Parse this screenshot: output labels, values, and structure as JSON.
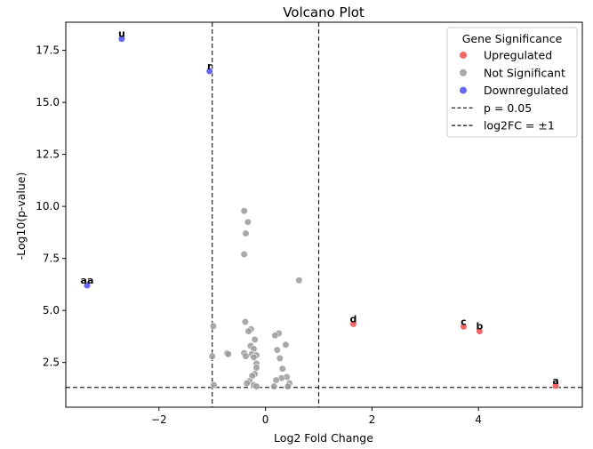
{
  "chart_data": {
    "type": "scatter",
    "title": "Volcano Plot",
    "xlabel": "Log2 Fold Change",
    "ylabel": "-Log10(p-value)",
    "xlim": [
      -3.75,
      5.95
    ],
    "ylim": [
      0.35,
      18.85
    ],
    "xticks": [
      -2,
      0,
      2,
      4
    ],
    "yticks": [
      2.5,
      5.0,
      7.5,
      10.0,
      12.5,
      15.0,
      17.5
    ],
    "xtick_labels": [
      "−2",
      "0",
      "2",
      "4"
    ],
    "ytick_labels": [
      "2.5",
      "5.0",
      "7.5",
      "10.0",
      "12.5",
      "15.0",
      "17.5"
    ],
    "grid": false,
    "legend": {
      "title": "Gene Significance",
      "placement": "top-right",
      "entries": [
        {
          "label": "Upregulated",
          "kind": "marker",
          "color": "#f04c4c"
        },
        {
          "label": "Not Significant",
          "kind": "marker",
          "color": "#9a9a9a"
        },
        {
          "label": "Downregulated",
          "kind": "marker",
          "color": "#4c4cf0"
        },
        {
          "label": "p = 0.05",
          "kind": "dashed-line",
          "color": "#222222"
        },
        {
          "label": "log2FC = ±1",
          "kind": "dashed-line",
          "color": "#222222"
        }
      ]
    },
    "threshold_lines": {
      "p_value_y": 1.3,
      "log2fc_x": [
        -1,
        1
      ]
    },
    "colors": {
      "Upregulated": "#f04c4c",
      "Not Significant": "#9a9a9a",
      "Downregulated": "#4c4cf0"
    },
    "series": [
      {
        "name": "Upregulated",
        "points": [
          {
            "x": 1.65,
            "y": 4.35,
            "label": "d"
          },
          {
            "x": 3.72,
            "y": 4.22,
            "label": "c"
          },
          {
            "x": 4.02,
            "y": 4.0,
            "label": "b"
          },
          {
            "x": 5.45,
            "y": 1.38,
            "label": "a"
          }
        ]
      },
      {
        "name": "Not Significant",
        "points": [
          {
            "x": -0.4,
            "y": 9.78
          },
          {
            "x": -0.33,
            "y": 9.25
          },
          {
            "x": -0.37,
            "y": 8.7
          },
          {
            "x": -0.4,
            "y": 7.7
          },
          {
            "x": 0.63,
            "y": 6.45
          },
          {
            "x": -0.38,
            "y": 4.45
          },
          {
            "x": -0.98,
            "y": 4.25
          },
          {
            "x": -0.27,
            "y": 4.1
          },
          {
            "x": -0.32,
            "y": 4.0
          },
          {
            "x": 0.25,
            "y": 3.9
          },
          {
            "x": 0.18,
            "y": 3.8
          },
          {
            "x": -0.2,
            "y": 3.6
          },
          {
            "x": 0.38,
            "y": 3.35
          },
          {
            "x": -0.28,
            "y": 3.3
          },
          {
            "x": -0.22,
            "y": 3.15
          },
          {
            "x": 0.22,
            "y": 3.1
          },
          {
            "x": -0.72,
            "y": 2.95
          },
          {
            "x": -0.7,
            "y": 2.9
          },
          {
            "x": -0.4,
            "y": 2.95
          },
          {
            "x": -0.26,
            "y": 2.9
          },
          {
            "x": -0.17,
            "y": 2.85
          },
          {
            "x": -0.37,
            "y": 2.8
          },
          {
            "x": -1.0,
            "y": 2.8
          },
          {
            "x": -0.22,
            "y": 2.75
          },
          {
            "x": 0.27,
            "y": 2.7
          },
          {
            "x": -0.17,
            "y": 2.45
          },
          {
            "x": -0.17,
            "y": 2.25
          },
          {
            "x": 0.32,
            "y": 2.2
          },
          {
            "x": -0.2,
            "y": 1.95
          },
          {
            "x": -0.25,
            "y": 1.85
          },
          {
            "x": 0.4,
            "y": 1.8
          },
          {
            "x": 0.3,
            "y": 1.75
          },
          {
            "x": 0.2,
            "y": 1.65
          },
          {
            "x": -0.3,
            "y": 1.6
          },
          {
            "x": -0.35,
            "y": 1.5
          },
          {
            "x": 0.45,
            "y": 1.5
          },
          {
            "x": -0.22,
            "y": 1.42
          },
          {
            "x": -0.97,
            "y": 1.42
          },
          {
            "x": 0.16,
            "y": 1.35
          },
          {
            "x": 0.42,
            "y": 1.35
          },
          {
            "x": -0.17,
            "y": 1.35
          }
        ]
      },
      {
        "name": "Downregulated",
        "points": [
          {
            "x": -2.7,
            "y": 18.05,
            "label": "u"
          },
          {
            "x": -1.05,
            "y": 16.5,
            "label": "r"
          },
          {
            "x": -3.35,
            "y": 6.2,
            "label": "aa"
          }
        ]
      }
    ]
  }
}
